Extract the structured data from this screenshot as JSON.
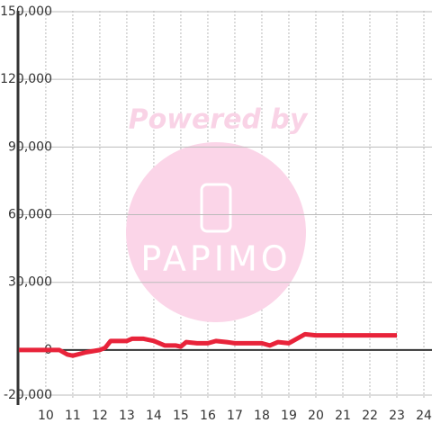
{
  "chart_data": {
    "type": "line",
    "watermark": {
      "line1": "Powered by",
      "line2": "PAPIMO"
    },
    "x": [
      9,
      9.5,
      10,
      10.5,
      10.8,
      11,
      11.5,
      12,
      12.2,
      12.4,
      12.7,
      13,
      13.2,
      13.6,
      14,
      14.4,
      14.8,
      15,
      15.2,
      15.6,
      16,
      16.3,
      16.7,
      17,
      17.5,
      18,
      18.3,
      18.6,
      19,
      19.3,
      19.6,
      20,
      21,
      22,
      23
    ],
    "series": [
      {
        "color": "#e8233a",
        "values": [
          0,
          0,
          0,
          0,
          -2000,
          -2500,
          -1000,
          0,
          1000,
          4000,
          4000,
          4000,
          5000,
          5000,
          4000,
          2000,
          2000,
          1500,
          3500,
          3000,
          3000,
          4000,
          3500,
          3000,
          3000,
          3000,
          2000,
          3500,
          3000,
          5000,
          7000,
          6500,
          6500,
          6500,
          6500
        ]
      }
    ],
    "xlim": [
      8.97,
      24.3
    ],
    "xticks": [
      10,
      11,
      12,
      13,
      14,
      15,
      16,
      17,
      18,
      19,
      20,
      21,
      22,
      23,
      24
    ],
    "ylim": [
      -21200,
      150400
    ],
    "yticks": [
      {
        "value": -20000,
        "label": "-20,000"
      },
      0,
      {
        "value": 30000,
        "label": "30,000"
      },
      {
        "value": 60000,
        "label": "60,000"
      },
      {
        "value": 90000,
        "label": "90,000"
      },
      {
        "value": 120000,
        "label": "120,000"
      },
      {
        "value": 150000,
        "label": "150,000"
      }
    ],
    "grid": true
  }
}
